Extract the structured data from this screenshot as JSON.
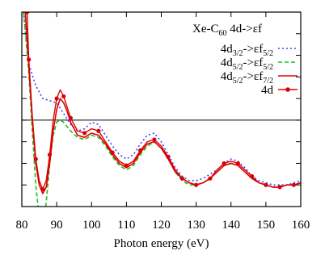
{
  "chart_data": {
    "type": "line",
    "title": "Xe-C₆₀ 4d->εf",
    "title_parts": {
      "main": "Xe-C",
      "sub": "60",
      "tail": " 4d->εf"
    },
    "xlabel": "Photon energy (eV)",
    "ylabel": "",
    "xlim": [
      80,
      160
    ],
    "ylim": [
      0,
      0.9
    ],
    "x_ticks": [
      80,
      90,
      100,
      110,
      120,
      130,
      140,
      150,
      160
    ],
    "x_tick_labels": [
      "80",
      "90",
      "100",
      "110",
      "120",
      "130",
      "140",
      "150",
      "160"
    ],
    "y_ticks": [
      0.1,
      0.2,
      0.3,
      0.4,
      0.5,
      0.6,
      0.7,
      0.8
    ],
    "y_tick_labels_shown": false,
    "grid": false,
    "legend_position": "top-right",
    "reference_lines": [
      {
        "orientation": "horizontal",
        "y": 0.4
      }
    ],
    "series": [
      {
        "name": "4d3/2->εf5/2",
        "legend_parts": {
          "a": "4d",
          "a_sub": "3/2",
          "b": "->εf",
          "b_sub": "5/2"
        },
        "color": "#4040ff",
        "style": "dotted",
        "x": [
          80.5,
          82,
          84,
          86,
          88,
          90,
          92,
          94,
          96,
          98,
          100,
          102,
          104,
          106,
          108,
          110,
          112,
          114,
          116,
          118,
          120,
          122,
          124,
          126,
          128,
          130,
          132,
          134,
          136,
          138,
          140,
          142,
          144,
          146,
          148,
          150,
          152,
          154,
          156,
          158,
          160
        ],
        "y": [
          0.9,
          0.66,
          0.56,
          0.5,
          0.49,
          0.48,
          0.43,
          0.38,
          0.35,
          0.36,
          0.39,
          0.38,
          0.33,
          0.28,
          0.24,
          0.22,
          0.24,
          0.29,
          0.33,
          0.34,
          0.3,
          0.24,
          0.18,
          0.14,
          0.12,
          0.12,
          0.13,
          0.15,
          0.17,
          0.2,
          0.22,
          0.21,
          0.18,
          0.14,
          0.12,
          0.11,
          0.1,
          0.1,
          0.1,
          0.11,
          0.12
        ]
      },
      {
        "name": "4d5/2->εf5/2",
        "legend_parts": {
          "a": "4d",
          "a_sub": "5/2",
          "b": "->εf",
          "b_sub": "5/2"
        },
        "color": "#22bb22",
        "style": "dashed",
        "x": [
          80.5,
          82,
          83,
          84,
          85,
          86,
          87,
          88,
          89,
          90,
          91,
          92,
          94,
          96,
          98,
          100,
          102,
          104,
          106,
          108,
          110,
          112,
          114,
          116,
          118,
          120,
          122,
          124,
          126,
          128,
          130,
          132,
          134,
          136,
          138,
          140,
          142,
          144,
          146,
          148,
          150,
          152,
          154,
          156,
          158,
          160
        ],
        "y": [
          0.9,
          0.62,
          0.35,
          0.1,
          -0.05,
          -0.1,
          0.02,
          0.2,
          0.33,
          0.39,
          0.4,
          0.39,
          0.35,
          0.32,
          0.31,
          0.33,
          0.32,
          0.28,
          0.23,
          0.19,
          0.17,
          0.19,
          0.24,
          0.28,
          0.3,
          0.27,
          0.22,
          0.16,
          0.12,
          0.1,
          0.1,
          0.11,
          0.13,
          0.16,
          0.19,
          0.2,
          0.19,
          0.16,
          0.13,
          0.11,
          0.1,
          0.09,
          0.09,
          0.1,
          0.1,
          0.11
        ]
      },
      {
        "name": "4d5/2->εf7/2",
        "legend_parts": {
          "a": "4d",
          "a_sub": "5/2",
          "b": "->εf",
          "b_sub": "7/2"
        },
        "color": "#dd0000",
        "style": "solid",
        "x": [
          81,
          82,
          83,
          84,
          85,
          86,
          87,
          88,
          89,
          90,
          91,
          92,
          93,
          94,
          96,
          98,
          100,
          102,
          104,
          106,
          108,
          110,
          112,
          114,
          116,
          118,
          120,
          122,
          124,
          126,
          128,
          130,
          132,
          134,
          136,
          138,
          140,
          142,
          144,
          146,
          148,
          150,
          152,
          154,
          156,
          158,
          160
        ],
        "y": [
          0.9,
          0.65,
          0.4,
          0.2,
          0.1,
          0.06,
          0.09,
          0.2,
          0.35,
          0.45,
          0.5,
          0.48,
          0.44,
          0.39,
          0.33,
          0.32,
          0.34,
          0.33,
          0.29,
          0.24,
          0.2,
          0.18,
          0.2,
          0.25,
          0.29,
          0.3,
          0.27,
          0.22,
          0.16,
          0.13,
          0.11,
          0.1,
          0.11,
          0.13,
          0.16,
          0.19,
          0.2,
          0.19,
          0.16,
          0.13,
          0.11,
          0.1,
          0.09,
          0.09,
          0.1,
          0.1,
          0.11
        ]
      },
      {
        "name": "4d",
        "legend_parts": {
          "a": "4d",
          "a_sub": "",
          "b": "",
          "b_sub": ""
        },
        "color": "#dd0000",
        "style": "solid-markers",
        "x": [
          81.5,
          82,
          83,
          84,
          85,
          86,
          87,
          88,
          89,
          90,
          91,
          92,
          93,
          94,
          96,
          98,
          100,
          102,
          104,
          106,
          108,
          110,
          112,
          114,
          116,
          118,
          120,
          122,
          124,
          126,
          128,
          130,
          132,
          134,
          136,
          138,
          140,
          142,
          144,
          146,
          148,
          150,
          152,
          154,
          156,
          158,
          160
        ],
        "y": [
          0.9,
          0.68,
          0.42,
          0.22,
          0.12,
          0.08,
          0.12,
          0.24,
          0.4,
          0.5,
          0.54,
          0.51,
          0.46,
          0.41,
          0.35,
          0.34,
          0.36,
          0.35,
          0.3,
          0.25,
          0.21,
          0.19,
          0.21,
          0.26,
          0.3,
          0.31,
          0.28,
          0.23,
          0.17,
          0.13,
          0.11,
          0.1,
          0.11,
          0.13,
          0.17,
          0.2,
          0.21,
          0.2,
          0.17,
          0.14,
          0.11,
          0.1,
          0.09,
          0.09,
          0.1,
          0.1,
          0.11
        ]
      }
    ]
  }
}
